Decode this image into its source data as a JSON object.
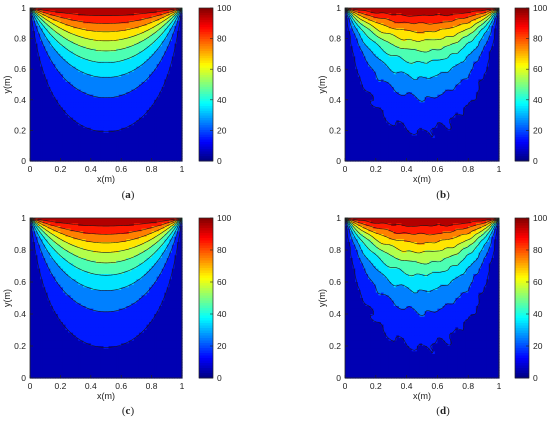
{
  "chart_data": {
    "type": "heatmap",
    "description_free": true,
    "colormap": "jet",
    "contour_levels": [
      10,
      20,
      30,
      40,
      50,
      60,
      70,
      80,
      90
    ],
    "panels": [
      {
        "caption": "(a)",
        "xlabel": "x(m)",
        "ylabel": "y(m)",
        "xlim": [
          0,
          1
        ],
        "ylim": [
          0,
          1
        ],
        "xticks": [
          "0",
          "0.2",
          "0.4",
          "0.6",
          "0.8",
          "1"
        ],
        "yticks": [
          "0",
          "0.2",
          "0.4",
          "0.6",
          "0.8",
          "1"
        ],
        "colorbar": {
          "min": 0,
          "max": 100,
          "ticks": [
            "0",
            "20",
            "40",
            "60",
            "80",
            "100"
          ]
        },
        "roughness": 0
      },
      {
        "caption": "(b)",
        "xlabel": "x(m)",
        "ylabel": "y(m)",
        "xlim": [
          0,
          1
        ],
        "ylim": [
          0,
          1
        ],
        "xticks": [
          "0",
          "0.2",
          "0.4",
          "0.6",
          "0.8",
          "1"
        ],
        "yticks": [
          "0",
          "0.2",
          "0.4",
          "0.6",
          "0.8",
          "1"
        ],
        "colorbar": {
          "min": 0,
          "max": 100,
          "ticks": [
            "0",
            "20",
            "40",
            "60",
            "80",
            "100"
          ]
        },
        "roughness": 1
      },
      {
        "caption": "(c)",
        "xlabel": "x(m)",
        "ylabel": "y(m)",
        "xlim": [
          0,
          1
        ],
        "ylim": [
          0,
          1
        ],
        "xticks": [
          "0",
          "0.2",
          "0.4",
          "0.6",
          "0.8",
          "1"
        ],
        "yticks": [
          "0",
          "0.2",
          "0.4",
          "0.6",
          "0.8",
          "1"
        ],
        "colorbar": {
          "min": 0,
          "max": 100,
          "ticks": [
            "0",
            "20",
            "40",
            "60",
            "80",
            "100"
          ]
        },
        "roughness": 0
      },
      {
        "caption": "(d)",
        "xlabel": "x(m)",
        "ylabel": "y(m)",
        "xlim": [
          0,
          1
        ],
        "ylim": [
          0,
          1
        ],
        "xticks": [
          "0",
          "0.2",
          "0.4",
          "0.6",
          "0.8",
          "1"
        ],
        "yticks": [
          "0",
          "0.2",
          "0.4",
          "0.6",
          "0.8",
          "1"
        ],
        "colorbar": {
          "min": 0,
          "max": 100,
          "ticks": [
            "0",
            "20",
            "40",
            "60",
            "80",
            "100"
          ]
        },
        "roughness": 1
      }
    ]
  }
}
